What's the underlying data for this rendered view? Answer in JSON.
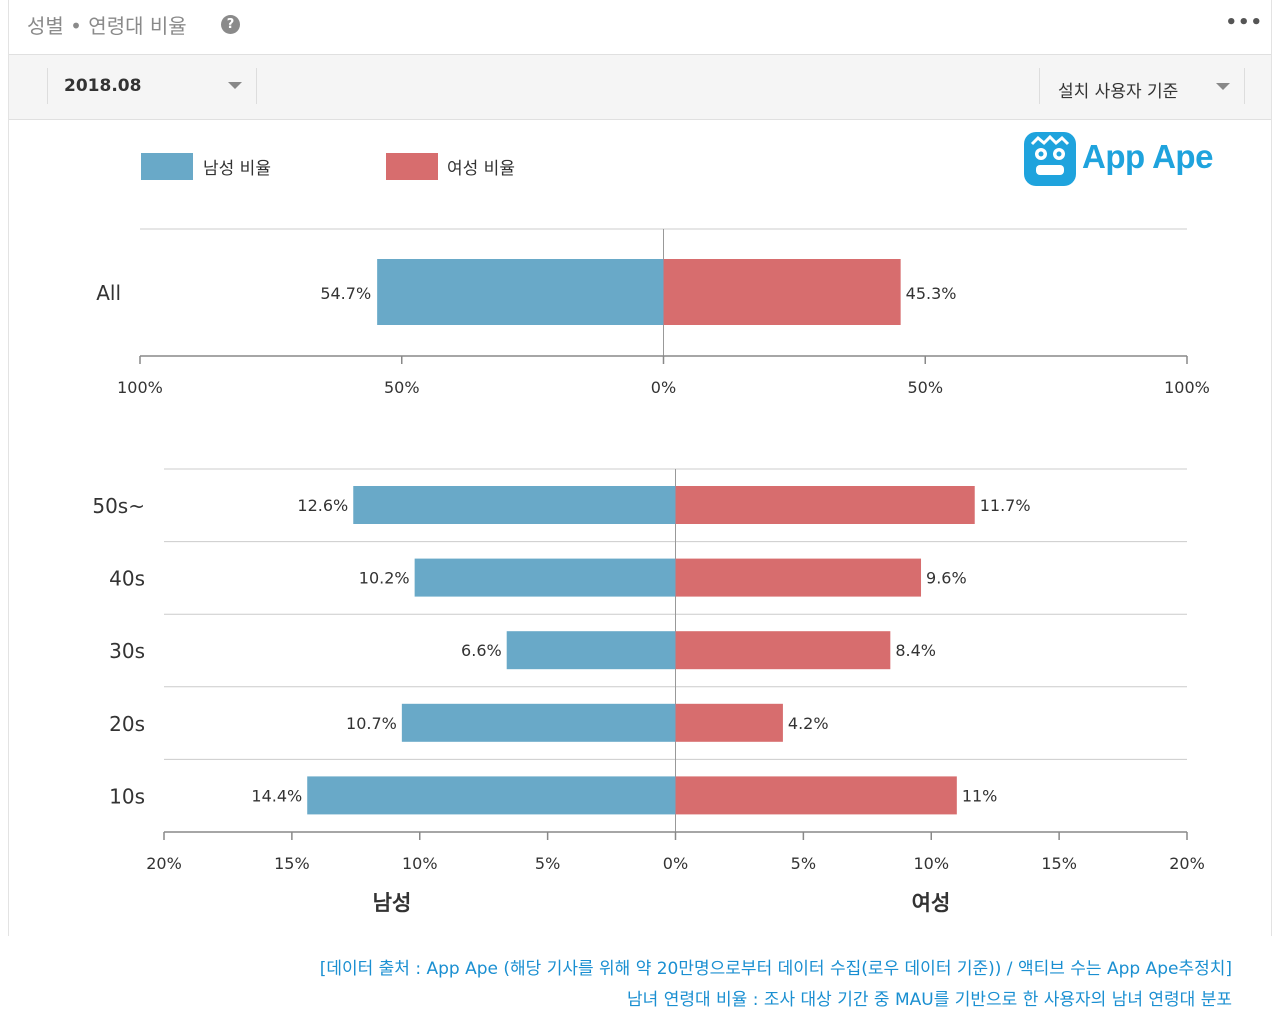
{
  "header": {
    "title": "성별 • 연령대 비율",
    "more": "•••"
  },
  "toolbar": {
    "period": "2018.08",
    "basis": "설치 사용자 기준"
  },
  "logo": {
    "text": "App Ape"
  },
  "colors": {
    "male": "#69a9c8",
    "female": "#d76d6e",
    "accent": "#1fa3dd"
  },
  "chart_data": [
    {
      "type": "bar",
      "orientation": "horizontal-diverging",
      "legend": [
        "남성 비율",
        "여성 비율"
      ],
      "legend_placement": "top-left",
      "categories": [
        "All"
      ],
      "series": [
        {
          "name": "남성 비율",
          "values": [
            54.7
          ],
          "labels": [
            "54.7%"
          ]
        },
        {
          "name": "여성 비율",
          "values": [
            45.3
          ],
          "labels": [
            "45.3%"
          ]
        }
      ],
      "xlim": [
        -100,
        100
      ],
      "ticks": [
        "100%",
        "50%",
        "0%",
        "50%",
        "100%"
      ]
    },
    {
      "type": "bar",
      "orientation": "horizontal-diverging",
      "categories": [
        "50s~",
        "40s",
        "30s",
        "20s",
        "10s"
      ],
      "series": [
        {
          "name": "남성",
          "values": [
            12.6,
            10.2,
            6.6,
            10.7,
            14.4
          ],
          "labels": [
            "12.6%",
            "10.2%",
            "6.6%",
            "10.7%",
            "14.4%"
          ]
        },
        {
          "name": "여성",
          "values": [
            11.7,
            9.6,
            8.4,
            4.2,
            11
          ],
          "labels": [
            "11.7%",
            "9.6%",
            "8.4%",
            "4.2%",
            "11%"
          ]
        }
      ],
      "xlim": [
        -20,
        20
      ],
      "ticks": [
        "20%",
        "15%",
        "10%",
        "5%",
        "0%",
        "5%",
        "10%",
        "15%",
        "20%"
      ],
      "xlabels": [
        "남성",
        "여성"
      ],
      "grid": true
    }
  ],
  "footer": {
    "line1": "[데이터 출처 : App Ape (해당 기사를 위해 약 20만명으로부터 데이터 수집(로우 데이터 기준)) / 액티브 수는 App Ape추정치]",
    "line2": "남녀 연령대 비율 : 조사 대상 기간 중 MAU를 기반으로 한 사용자의 남녀 연령대 분포"
  }
}
